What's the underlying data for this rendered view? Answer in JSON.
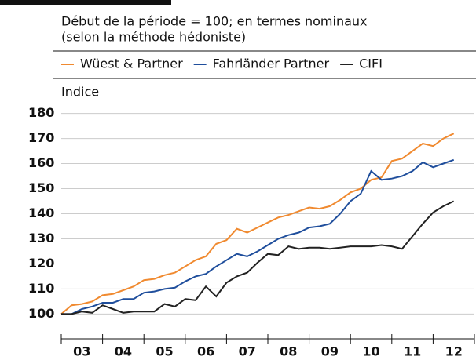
{
  "chart_data": {
    "type": "line",
    "subtitle_lines": [
      "Début de la période = 100; en termes nominaux",
      "(selon la méthode hédoniste)"
    ],
    "y_label": "Indice",
    "x": [
      2003,
      2003.25,
      2003.5,
      2003.75,
      2004,
      2004.25,
      2004.5,
      2004.75,
      2005,
      2005.25,
      2005.5,
      2005.75,
      2006,
      2006.25,
      2006.5,
      2006.75,
      2007,
      2007.25,
      2007.5,
      2007.75,
      2008,
      2008.25,
      2008.5,
      2008.75,
      2009,
      2009.25,
      2009.5,
      2009.75,
      2010,
      2010.25,
      2010.5,
      2010.75,
      2011,
      2011.25,
      2011.5,
      2011.75,
      2012,
      2012.25,
      2012.5
    ],
    "series": [
      {
        "name": "Wüest & Partner",
        "color": "#f08a30",
        "values": [
          100,
          103.5,
          104,
          105,
          107.5,
          108,
          109.5,
          111,
          113.5,
          114,
          115.5,
          116.5,
          119,
          121.5,
          123,
          128,
          129.5,
          134,
          132.5,
          134.5,
          136.5,
          138.5,
          139.5,
          141,
          142.5,
          142,
          143,
          145.5,
          148.5,
          150,
          153.5,
          154.5,
          161,
          162,
          165,
          168,
          167,
          170,
          172
        ]
      },
      {
        "name": "Fahrländer Partner",
        "color": "#1f4e9c",
        "values": [
          100,
          100,
          102,
          103,
          104.5,
          104.5,
          106,
          106,
          108.5,
          109,
          110,
          110.5,
          113,
          115,
          116,
          119,
          121.5,
          124,
          123,
          125,
          127.5,
          130,
          131.5,
          132.5,
          134.5,
          135,
          136,
          140,
          145,
          148,
          157,
          153.5,
          154,
          155,
          157,
          160.5,
          158.5,
          160,
          161.5
        ]
      },
      {
        "name": "CIFI",
        "color": "#222222",
        "values": [
          100,
          100,
          101,
          100.5,
          103.5,
          102,
          100.5,
          101,
          101,
          101,
          104,
          103,
          106,
          105.5,
          111,
          107,
          112.5,
          115,
          116.5,
          120.5,
          124,
          123.5,
          127,
          126,
          126.5,
          126.5,
          126,
          126.5,
          127,
          127,
          127,
          127.5,
          127,
          126,
          131,
          136,
          140.5,
          143,
          145
        ]
      }
    ],
    "xlim": [
      2003,
      2013
    ],
    "xticks": [
      {
        "value": 2003.5,
        "label": "03"
      },
      {
        "value": 2004.5,
        "label": "04"
      },
      {
        "value": 2005.5,
        "label": "05"
      },
      {
        "value": 2006.5,
        "label": "06"
      },
      {
        "value": 2007.5,
        "label": "07"
      },
      {
        "value": 2008.5,
        "label": "08"
      },
      {
        "value": 2009.5,
        "label": "09"
      },
      {
        "value": 2010.5,
        "label": "10"
      },
      {
        "value": 2011.5,
        "label": "11"
      },
      {
        "value": 2012.5,
        "label": "12"
      }
    ],
    "ylim": [
      97,
      183
    ],
    "yticks": [
      100,
      110,
      120,
      130,
      140,
      150,
      160,
      170,
      180
    ],
    "grid": true
  }
}
